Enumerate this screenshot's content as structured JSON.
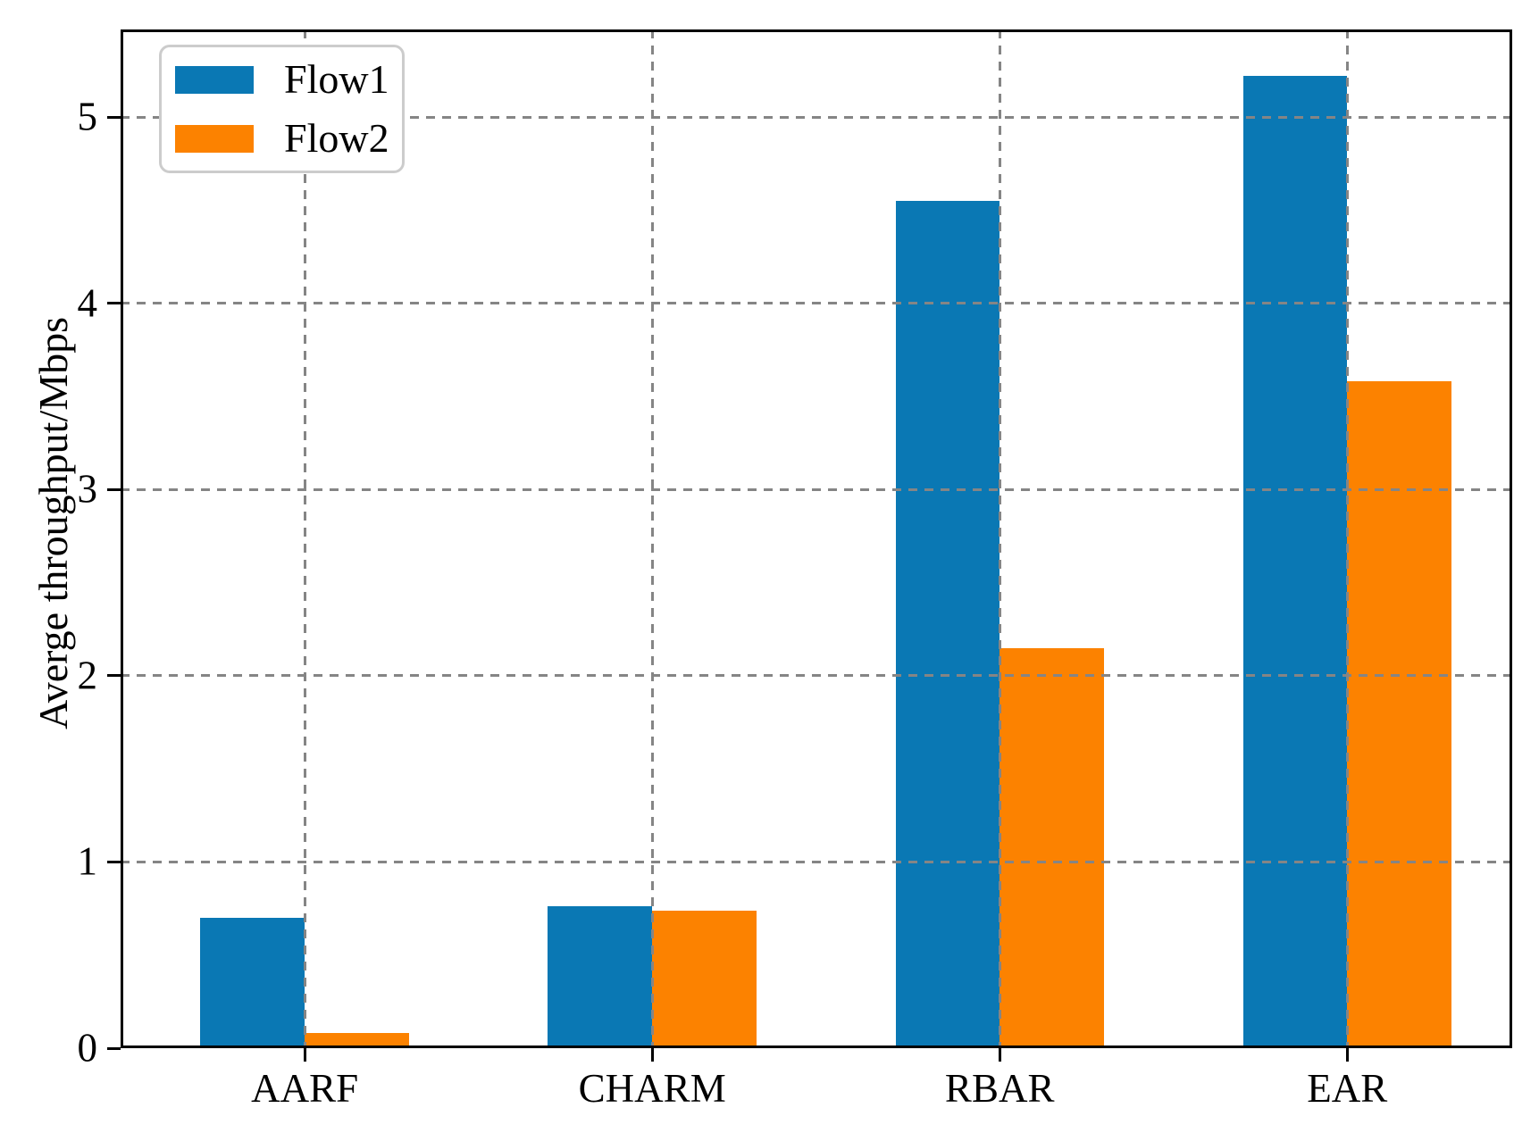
{
  "figure": {
    "background": "#ffffff",
    "text_color": "#000000"
  },
  "chart_data": {
    "type": "bar",
    "title": "",
    "categories": [
      "AARF",
      "CHARM",
      "RBAR",
      "EAR"
    ],
    "series": [
      {
        "name": "Flow1",
        "color": "#0a78b4",
        "values": [
          0.7,
          0.76,
          4.55,
          5.22
        ]
      },
      {
        "name": "Flow2",
        "color": "#fc8200",
        "values": [
          0.08,
          0.74,
          2.15,
          3.58
        ]
      }
    ],
    "xlabel": "",
    "ylabel": "Averge throughput/Mbps",
    "yticks": [
      0,
      1,
      2,
      3,
      4,
      5
    ],
    "ylim": [
      0,
      5.47
    ],
    "xlim": [
      -0.53,
      3.475
    ],
    "bar_width": 0.3,
    "grid": "dashed, horizontal at y-ticks and vertical at category centers, drawn above bars",
    "legend": {
      "position": "upper-left"
    }
  },
  "style": {
    "grid_color": "#858585",
    "spine_color": "#000000",
    "legend_border_color": "#cccccc"
  }
}
